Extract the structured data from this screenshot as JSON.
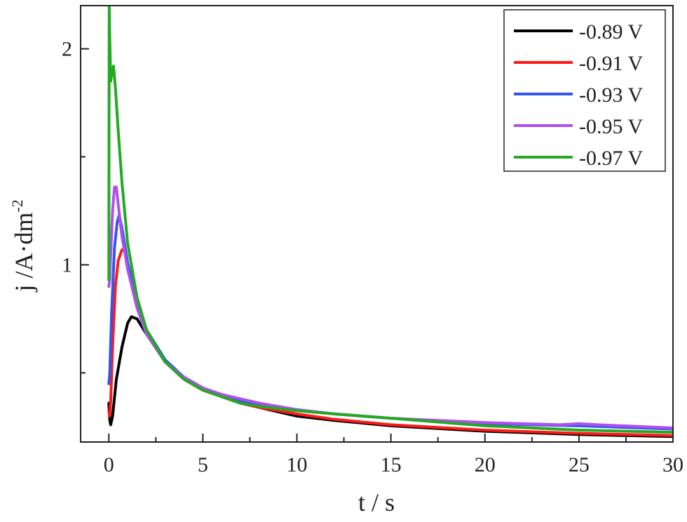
{
  "chart_data": {
    "type": "line",
    "title": "",
    "xlabel": "t / s",
    "ylabel_main": "j /A·dm",
    "ylabel_superscript": "-2",
    "xlim": [
      -1.5,
      30
    ],
    "ylim": [
      0.18,
      2.2
    ],
    "xticks": [
      0,
      5,
      10,
      15,
      20,
      25,
      30
    ],
    "xtick_labels": [
      "0",
      "5",
      "10",
      "15",
      "20",
      "25",
      "30"
    ],
    "yticks": [
      1,
      2
    ],
    "ytick_labels": [
      "1",
      "2"
    ],
    "grid": false,
    "legend_position": "top-right",
    "series": [
      {
        "name": "-0.89 V",
        "color": "#000000",
        "points": [
          [
            0.0,
            0.36
          ],
          [
            0.05,
            0.28
          ],
          [
            0.1,
            0.26
          ],
          [
            0.2,
            0.3
          ],
          [
            0.4,
            0.47
          ],
          [
            0.7,
            0.62
          ],
          [
            1.0,
            0.73
          ],
          [
            1.2,
            0.76
          ],
          [
            1.5,
            0.75
          ],
          [
            2.0,
            0.68
          ],
          [
            3.0,
            0.55
          ],
          [
            4.0,
            0.48
          ],
          [
            5.0,
            0.43
          ],
          [
            6.0,
            0.39
          ],
          [
            7.0,
            0.36
          ],
          [
            8.0,
            0.34
          ],
          [
            10.0,
            0.3
          ],
          [
            12.0,
            0.28
          ],
          [
            15.0,
            0.255
          ],
          [
            20.0,
            0.23
          ],
          [
            25.0,
            0.215
          ],
          [
            30.0,
            0.205
          ]
        ]
      },
      {
        "name": "-0.91 V",
        "color": "#ff1a1a",
        "points": [
          [
            0.0,
            0.32
          ],
          [
            0.05,
            0.3
          ],
          [
            0.1,
            0.37
          ],
          [
            0.2,
            0.62
          ],
          [
            0.35,
            0.9
          ],
          [
            0.5,
            1.02
          ],
          [
            0.7,
            1.07
          ],
          [
            0.85,
            1.07
          ],
          [
            1.0,
            1.0
          ],
          [
            1.5,
            0.82
          ],
          [
            2.0,
            0.69
          ],
          [
            3.0,
            0.55
          ],
          [
            4.0,
            0.47
          ],
          [
            5.0,
            0.42
          ],
          [
            6.0,
            0.39
          ],
          [
            7.0,
            0.36
          ],
          [
            8.0,
            0.34
          ],
          [
            10.0,
            0.31
          ],
          [
            12.0,
            0.285
          ],
          [
            15.0,
            0.26
          ],
          [
            20.0,
            0.235
          ],
          [
            25.0,
            0.22
          ],
          [
            30.0,
            0.21
          ]
        ]
      },
      {
        "name": "-0.93 V",
        "color": "#3355ee",
        "points": [
          [
            0.0,
            0.45
          ],
          [
            0.05,
            0.5
          ],
          [
            0.15,
            0.78
          ],
          [
            0.3,
            1.08
          ],
          [
            0.45,
            1.2
          ],
          [
            0.55,
            1.23
          ],
          [
            0.7,
            1.17
          ],
          [
            1.0,
            1.01
          ],
          [
            1.5,
            0.83
          ],
          [
            2.0,
            0.7
          ],
          [
            3.0,
            0.56
          ],
          [
            4.0,
            0.48
          ],
          [
            5.0,
            0.43
          ],
          [
            6.0,
            0.4
          ],
          [
            7.0,
            0.37
          ],
          [
            8.0,
            0.35
          ],
          [
            10.0,
            0.33
          ],
          [
            12.0,
            0.31
          ],
          [
            15.0,
            0.29
          ],
          [
            20.0,
            0.265
          ],
          [
            25.0,
            0.255
          ],
          [
            30.0,
            0.24
          ]
        ]
      },
      {
        "name": "-0.95 V",
        "color": "#b04ff0",
        "points": [
          [
            0.0,
            0.9
          ],
          [
            0.05,
            0.93
          ],
          [
            0.1,
            1.05
          ],
          [
            0.2,
            1.25
          ],
          [
            0.3,
            1.36
          ],
          [
            0.4,
            1.36
          ],
          [
            0.5,
            1.28
          ],
          [
            0.7,
            1.13
          ],
          [
            1.0,
            0.98
          ],
          [
            1.5,
            0.8
          ],
          [
            2.0,
            0.68
          ],
          [
            3.0,
            0.55
          ],
          [
            4.0,
            0.48
          ],
          [
            5.0,
            0.43
          ],
          [
            6.0,
            0.4
          ],
          [
            7.0,
            0.38
          ],
          [
            8.0,
            0.36
          ],
          [
            10.0,
            0.33
          ],
          [
            12.0,
            0.31
          ],
          [
            15.0,
            0.29
          ],
          [
            20.0,
            0.27
          ],
          [
            24.0,
            0.26
          ],
          [
            25.0,
            0.265
          ],
          [
            26.0,
            0.26
          ],
          [
            30.0,
            0.245
          ]
        ]
      },
      {
        "name": "-0.97 V",
        "color": "#22aa22",
        "points": [
          [
            0.0,
            0.93
          ],
          [
            0.02,
            2.2
          ],
          [
            0.05,
            2.05
          ],
          [
            0.1,
            1.85
          ],
          [
            0.18,
            1.9
          ],
          [
            0.25,
            1.92
          ],
          [
            0.35,
            1.82
          ],
          [
            0.5,
            1.62
          ],
          [
            0.7,
            1.38
          ],
          [
            1.0,
            1.1
          ],
          [
            1.5,
            0.85
          ],
          [
            2.0,
            0.7
          ],
          [
            3.0,
            0.55
          ],
          [
            4.0,
            0.47
          ],
          [
            5.0,
            0.42
          ],
          [
            6.0,
            0.39
          ],
          [
            7.0,
            0.36
          ],
          [
            8.0,
            0.345
          ],
          [
            10.0,
            0.325
          ],
          [
            12.0,
            0.31
          ],
          [
            15.0,
            0.29
          ],
          [
            20.0,
            0.255
          ],
          [
            25.0,
            0.235
          ],
          [
            30.0,
            0.225
          ]
        ]
      }
    ]
  }
}
